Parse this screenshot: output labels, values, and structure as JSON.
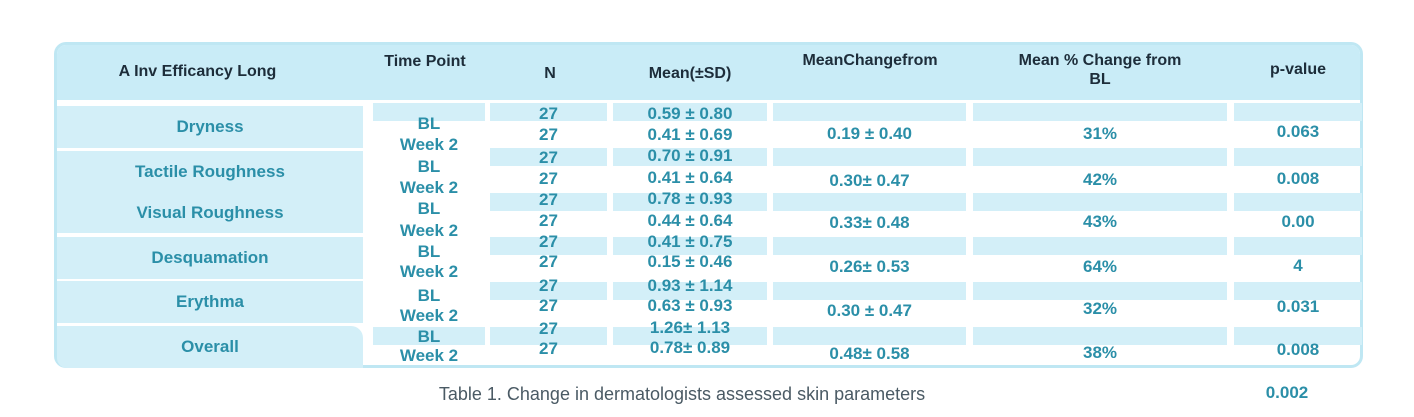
{
  "headers": {
    "col1": "A Inv Efficancy Long",
    "col2": "Time Point",
    "col3": "N",
    "col4": "Mean(±SD)",
    "col5": "MeanChangefrom",
    "col6": "Mean % Change from BL",
    "col7": "p-value"
  },
  "rows": [
    {
      "label": "Dryness",
      "tp1": "BL",
      "tp2": "Week 2",
      "n1": "27",
      "n2": "27",
      "m1": "0.59 ± 0.80",
      "m2": "0.41 ± 0.69",
      "chg": "0.19 ± 0.40",
      "pct": "31%",
      "p": "0.063"
    },
    {
      "label": "Tactile Roughness",
      "tp1": "BL",
      "tp2": "Week 2",
      "n1": "27",
      "n2": "27",
      "m1": "0.70 ± 0.91",
      "m2": "0.41 ± 0.64",
      "chg": "0.30± 0.47",
      "pct": "42%",
      "p": "0.008"
    },
    {
      "label": "Visual Roughness",
      "tp1": "BL",
      "tp2": "Week 2",
      "n1": "27",
      "n2": "27",
      "m1": "0.78 ± 0.93",
      "m2": "0.44 ± 0.64",
      "chg": "0.33± 0.48",
      "pct": "43%",
      "p": "0.00"
    },
    {
      "label": "Desquamation",
      "tp1": "BL",
      "tp2": "Week 2",
      "n1": "27",
      "n2": "27",
      "m1": "0.41 ± 0.75",
      "m2": "0.15 ± 0.46",
      "chg": "0.26± 0.53",
      "pct": "64%",
      "p": "4"
    },
    {
      "label": "Erythma",
      "tp1": "BL",
      "tp2": "Week 2",
      "n1": "27",
      "n2": "27",
      "m1": "0.93 ± 1.14",
      "m2": "0.63 ± 0.93",
      "chg": "0.30 ± 0.47",
      "pct": "32%",
      "p": "0.031"
    },
    {
      "label": "Overall",
      "tp1": "BL",
      "tp2": "Week 2",
      "n1": "27",
      "n2": "27",
      "m1": "1.26± 1.13",
      "m2": "0.78± 0.89",
      "chg": "0.48± 0.58",
      "pct": "38%",
      "p": "0.008"
    }
  ],
  "caption": "Table 1. Change in dermatologists assessed skin parameters",
  "extra_value": "0.002",
  "colors": {
    "accent": "#2b8fa8",
    "header_bg": "#c9ecf7",
    "band": "#d3eff8",
    "border": "#bfe7f3"
  }
}
